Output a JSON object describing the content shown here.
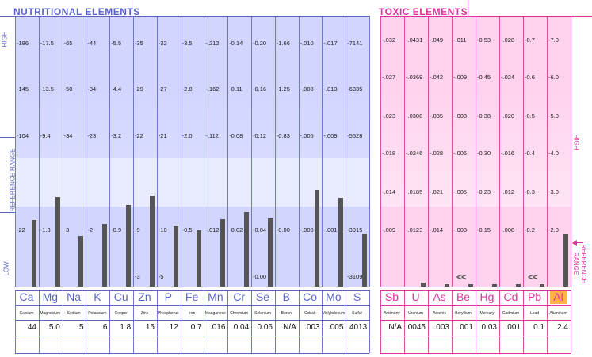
{
  "nutritional": {
    "title": "NUTRITIONAL ELEMENTS",
    "side_labels": {
      "high": "HIGH",
      "reference_range": "REFERENCE RANGE",
      "low": "LOW"
    },
    "elements": [
      {
        "symbol": "Ca",
        "name": "Calcium",
        "result": "44",
        "ticks": [
          "186",
          "145",
          "104",
          "22"
        ]
      },
      {
        "symbol": "Mg",
        "name": "Magnesium",
        "result": "5.0",
        "ticks": [
          "17.5",
          "13.5",
          "9.4",
          "1.3"
        ]
      },
      {
        "symbol": "Na",
        "name": "Sodium",
        "result": "5",
        "ticks": [
          "65",
          "50",
          "34",
          "3"
        ]
      },
      {
        "symbol": "K",
        "name": "Potassium",
        "result": "6",
        "ticks": [
          "44",
          "34",
          "23",
          "2"
        ]
      },
      {
        "symbol": "Cu",
        "name": "Copper",
        "result": "1.8",
        "ticks": [
          "5.5",
          "4.4",
          "3.2",
          "0.9"
        ]
      },
      {
        "symbol": "Zn",
        "name": "Zinc",
        "result": "15",
        "ticks": [
          "35",
          "29",
          "22",
          "9"
        ],
        "low_tick": "3"
      },
      {
        "symbol": "P",
        "name": "Phosphorus",
        "result": "12",
        "ticks": [
          "32",
          "27",
          "21",
          "10"
        ],
        "low_tick": "5"
      },
      {
        "symbol": "Fe",
        "name": "Iron",
        "result": "0.7",
        "ticks": [
          "3.5",
          "2.8",
          "2.0",
          "0.5"
        ]
      },
      {
        "symbol": "Mn",
        "name": "Manganese",
        "result": ".016",
        "ticks": [
          ".212",
          ".162",
          ".112",
          ".012"
        ]
      },
      {
        "symbol": "Cr",
        "name": "Chromium",
        "result": "0.04",
        "ticks": [
          "0.14",
          "0.11",
          "0.08",
          "0.02"
        ]
      },
      {
        "symbol": "Se",
        "name": "Selenium",
        "result": "0.06",
        "ticks": [
          "0.20",
          "0.16",
          "0.12",
          "0.04"
        ],
        "low_tick": "0.00"
      },
      {
        "symbol": "B",
        "name": "Boron",
        "result": "N/A",
        "ticks": [
          "1.66",
          "1.25",
          "0.83",
          "0.00"
        ]
      },
      {
        "symbol": "Co",
        "name": "Cobalt",
        "result": ".003",
        "ticks": [
          ".010",
          ".008",
          ".005",
          ".000"
        ]
      },
      {
        "symbol": "Mo",
        "name": "Molybdenum",
        "result": ".005",
        "ticks": [
          ".017",
          ".013",
          ".009",
          ".001"
        ]
      },
      {
        "symbol": "S",
        "name": "Sulfur",
        "result": "4013",
        "ticks": [
          "7141",
          "6335",
          "5528",
          "3915"
        ],
        "low_tick": "3109"
      }
    ]
  },
  "toxic": {
    "title": "TOXIC ELEMENTS",
    "side_labels": {
      "high": "HIGH",
      "reference_range": "REFERENCE RANGE"
    },
    "elements": [
      {
        "symbol": "Sb",
        "name": "Antimony",
        "result": "N/A",
        "ticks": [
          ".032",
          ".027",
          ".023",
          ".018",
          ".014",
          ".009"
        ]
      },
      {
        "symbol": "U",
        "name": "Uranium",
        "result": ".0045",
        "ticks": [
          ".0431",
          ".0369",
          ".0308",
          ".0246",
          ".0185",
          ".0123"
        ]
      },
      {
        "symbol": "As",
        "name": "Arsenic",
        "result": ".003",
        "ticks": [
          ".049",
          ".042",
          ".035",
          ".028",
          ".021",
          ".014"
        ]
      },
      {
        "symbol": "Be",
        "name": "Beryllium",
        "result": ".001",
        "ticks": [
          ".011",
          ".009",
          ".008",
          ".006",
          ".005",
          ".003"
        ],
        "marker": "<<"
      },
      {
        "symbol": "Hg",
        "name": "Mercury",
        "result": "0.03",
        "ticks": [
          "0.53",
          "0.45",
          "0.38",
          "0.30",
          "0.23",
          "0.15"
        ]
      },
      {
        "symbol": "Cd",
        "name": "Cadmium",
        "result": ".001",
        "ticks": [
          ".028",
          ".024",
          ".020",
          ".016",
          ".012",
          ".008"
        ]
      },
      {
        "symbol": "Pb",
        "name": "Lead",
        "result": "0.1",
        "ticks": [
          "0.7",
          "0.6",
          "0.5",
          "0.4",
          "0.3",
          "0.2"
        ],
        "marker": "<<"
      },
      {
        "symbol": "Al",
        "name": "Aluminum",
        "result": "2.4",
        "ticks": [
          "7.0",
          "6.0",
          "5.0",
          "4.0",
          "3.0",
          "2.0"
        ]
      }
    ]
  },
  "chart_data": [
    {
      "type": "bar",
      "title": "NUTRITIONAL ELEMENTS",
      "categories": [
        "Ca",
        "Mg",
        "Na",
        "K",
        "Cu",
        "Zn",
        "P",
        "Fe",
        "Mn",
        "Cr",
        "Se",
        "B",
        "Co",
        "Mo",
        "S"
      ],
      "values": [
        44,
        5.0,
        5,
        6,
        1.8,
        15,
        12,
        0.7,
        0.016,
        0.04,
        0.06,
        null,
        0.003,
        0.005,
        4013
      ],
      "bar_level_0_to_6_bands": [
        1.82,
        2.45,
        1.4,
        1.71,
        2.24,
        2.5,
        1.67,
        1.55,
        1.85,
        2.04,
        1.87,
        0,
        2.66,
        2.43,
        1.46
      ],
      "ylabel": "HIGH / REFERENCE RANGE / LOW"
    },
    {
      "type": "bar",
      "title": "TOXIC ELEMENTS",
      "categories": [
        "Sb",
        "U",
        "As",
        "Be",
        "Hg",
        "Cd",
        "Pb",
        "Al"
      ],
      "values": [
        null,
        0.0045,
        0.003,
        0.001,
        0.03,
        0.001,
        0.1,
        2.4
      ],
      "bar_level_0_to_6_bands": [
        0,
        0.1,
        0.02,
        0.02,
        0.02,
        0.02,
        0.02,
        1.44
      ],
      "ylabel": "HIGH / REFERENCE RANGE"
    }
  ],
  "colors": {
    "nutritional_accent": "#5a64c8",
    "toxic_accent": "#e0309c",
    "aluminum_highlight": "#ffb347",
    "bar": "#555555"
  }
}
